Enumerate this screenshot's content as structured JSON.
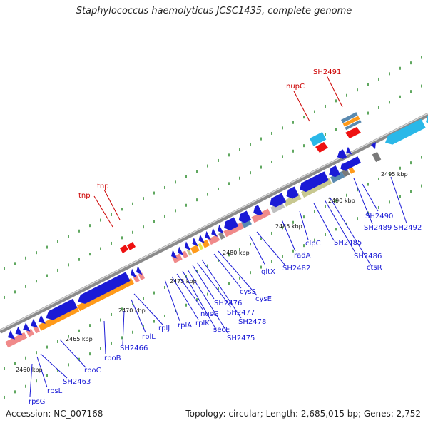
{
  "header": {
    "title": "Staphylococcus haemolyticus JCSC1435, complete genome"
  },
  "footer": {
    "accession": "Accession: NC_007168",
    "summary": "Topology: circular; Length: 2,685,015 bp; Genes: 2,752"
  },
  "scale_labels": [
    "2460 kbp",
    "2465 kbp",
    "2470 kbp",
    "2475 kbp",
    "2480 kbp",
    "2485 kbp",
    "2490 kbp",
    "2495 kbp"
  ],
  "gene_labels": [
    "rpsG",
    "rpsL",
    "SH2463",
    "rpoC",
    "rpoB",
    "SH2466",
    "rplL",
    "rplJ",
    "rplA",
    "rplK",
    "nusG",
    "secE",
    "SH2475",
    "SH2476",
    "SH2477",
    "SH2478",
    "cysS",
    "cysE",
    "gltX",
    "SH2482",
    "radA",
    "clpC",
    "SH2485",
    "SH2486",
    "ctsR",
    "SH2489",
    "SH2490",
    "SH2492"
  ],
  "red_labels": [
    "tnp",
    "tnp",
    "nupC",
    "SH2491"
  ],
  "colors": {
    "backbone": "#8a8a8a",
    "tick": "#2a8a2a",
    "gene_blue": "#1a1ad6",
    "rna_orange": "#ff9a1a",
    "salmon": "#f08a8a",
    "olive": "#c8c890",
    "steel": "#5a8ab0",
    "gray": "#b8b8b8",
    "cyan": "#2ab8e8",
    "red": "#ee1111"
  }
}
